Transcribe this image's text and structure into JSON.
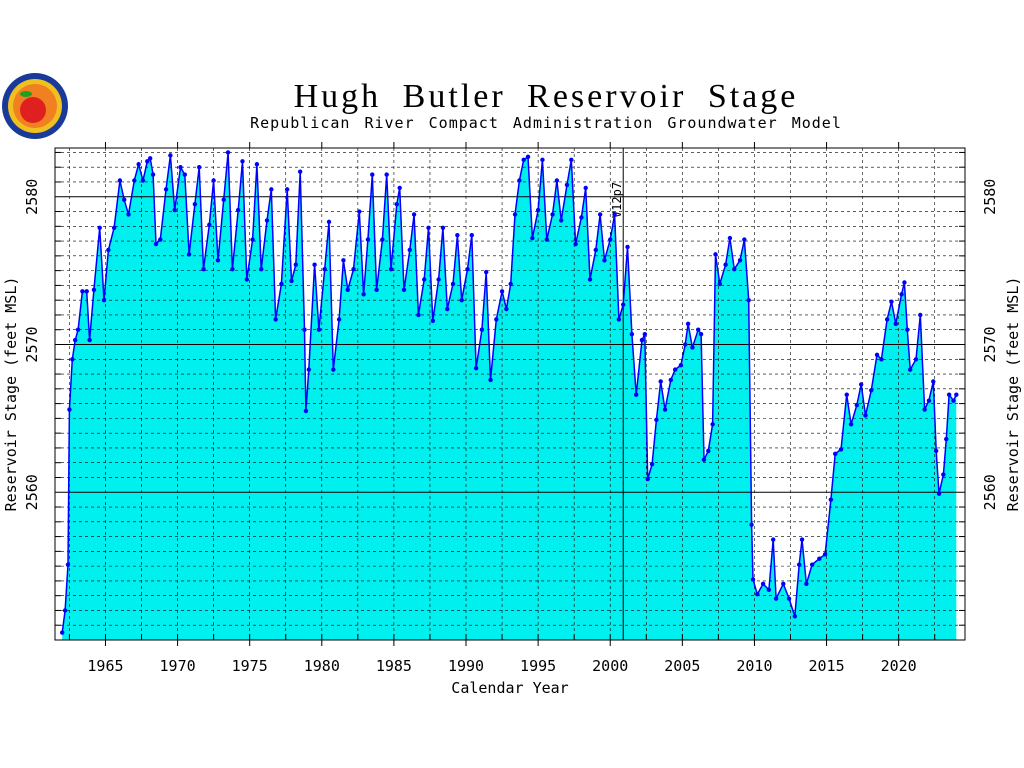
{
  "chart_data": {
    "type": "area",
    "title": "Hugh Butler Reservoir Stage",
    "subtitle": "Republican River Compact Administration Groundwater Model",
    "x_label": "Calendar Year",
    "y_label": "Reservoir Stage (feet MSL)",
    "xlim": [
      1961.5,
      2024.6
    ],
    "ylim": [
      2550,
      2583.3
    ],
    "xticks": [
      1965,
      1970,
      1975,
      1980,
      1985,
      1990,
      1995,
      2000,
      2005,
      2010,
      2015,
      2020
    ],
    "xgrid": [
      1962.5,
      1965,
      1967.5,
      1970,
      1972.5,
      1975,
      1977.5,
      1980,
      1982.5,
      1985,
      1987.5,
      1990,
      1992.5,
      1995,
      1997.5,
      2000,
      2002.5,
      2005,
      2007.5,
      2010,
      2012.5,
      2015,
      2017.5,
      2020,
      2022.5
    ],
    "yticks": [
      2560,
      2570,
      2580
    ],
    "yminor_ticks": [
      2551,
      2552,
      2553,
      2554,
      2555,
      2556,
      2557,
      2558,
      2559,
      2561,
      2562,
      2563,
      2564,
      2565,
      2566,
      2567,
      2568,
      2569,
      2571,
      2572,
      2573,
      2574,
      2575,
      2576,
      2577,
      2578,
      2579,
      2581,
      2582,
      2583
    ],
    "grid": true,
    "annotation": {
      "text": "V12p7",
      "x": 2000.9
    },
    "series": [
      {
        "name": "Reservoir Stage",
        "color": "#0000ff",
        "fill": "#00f0f0",
        "x": [
          1962.0,
          1962.2,
          1962.4,
          1962.5,
          1962.7,
          1962.9,
          1963.1,
          1963.4,
          1963.7,
          1963.9,
          1964.2,
          1964.6,
          1964.9,
          1965.2,
          1965.6,
          1966.0,
          1966.3,
          1966.6,
          1967.0,
          1967.3,
          1967.6,
          1967.9,
          1968.1,
          1968.3,
          1968.5,
          1968.8,
          1969.2,
          1969.5,
          1969.8,
          1970.2,
          1970.5,
          1970.8,
          1971.2,
          1971.5,
          1971.8,
          1972.2,
          1972.5,
          1972.8,
          1973.2,
          1973.5,
          1973.8,
          1974.2,
          1974.5,
          1974.8,
          1975.2,
          1975.5,
          1975.8,
          1976.2,
          1976.5,
          1976.8,
          1977.2,
          1977.6,
          1977.9,
          1978.2,
          1978.5,
          1978.8,
          1978.9,
          1979.1,
          1979.5,
          1979.8,
          1980.2,
          1980.5,
          1980.8,
          1981.2,
          1981.5,
          1981.8,
          1982.2,
          1982.6,
          1982.9,
          1983.2,
          1983.5,
          1983.8,
          1984.2,
          1984.5,
          1984.8,
          1985.2,
          1985.4,
          1985.7,
          1986.1,
          1986.4,
          1986.7,
          1987.1,
          1987.4,
          1987.7,
          1988.1,
          1988.4,
          1988.7,
          1989.1,
          1989.4,
          1989.7,
          1990.1,
          1990.4,
          1990.7,
          1991.1,
          1991.4,
          1991.7,
          1992.1,
          1992.5,
          1992.8,
          1993.1,
          1993.4,
          1993.7,
          1994.0,
          1994.3,
          1994.6,
          1995.0,
          1995.3,
          1995.6,
          1996.0,
          1996.3,
          1996.6,
          1997.0,
          1997.3,
          1997.6,
          1998.0,
          1998.3,
          1998.6,
          1999.0,
          1999.3,
          1999.6,
          2000.0,
          2000.3,
          2000.6,
          2000.9,
          2001.2,
          2001.5,
          2001.8,
          2002.2,
          2002.4,
          2002.6,
          2002.9,
          2003.2,
          2003.5,
          2003.8,
          2004.2,
          2004.5,
          2004.9,
          2005.2,
          2005.4,
          2005.7,
          2006.1,
          2006.3,
          2006.5,
          2006.8,
          2007.1,
          2007.3,
          2007.6,
          2008.0,
          2008.3,
          2008.6,
          2009.0,
          2009.3,
          2009.6,
          2009.8,
          2009.9,
          2010.2,
          2010.6,
          2011.0,
          2011.3,
          2011.5,
          2012.0,
          2012.4,
          2012.8,
          2013.1,
          2013.3,
          2013.6,
          2014.0,
          2014.5,
          2014.9,
          2015.3,
          2015.6,
          2016.0,
          2016.4,
          2016.7,
          2017.1,
          2017.4,
          2017.7,
          2018.1,
          2018.5,
          2018.8,
          2019.2,
          2019.5,
          2019.8,
          2020.2,
          2020.4,
          2020.6,
          2020.8,
          2021.2,
          2021.5,
          2021.8,
          2022.1,
          2022.4,
          2022.6,
          2022.8,
          2023.1,
          2023.3,
          2023.5,
          2023.8,
          2024.0
        ],
        "values": [
          2550.5,
          2552,
          2555.1,
          2565.6,
          2569,
          2570.3,
          2571,
          2573.6,
          2573.6,
          2570.3,
          2573.7,
          2577.9,
          2573,
          2576.4,
          2577.9,
          2581.1,
          2579.8,
          2578.8,
          2581.1,
          2582.2,
          2581.1,
          2582.4,
          2582.6,
          2581.5,
          2576.8,
          2577.1,
          2580.5,
          2582.8,
          2579.1,
          2582,
          2581.5,
          2576.1,
          2579.5,
          2582,
          2575.1,
          2578.1,
          2581.1,
          2575.7,
          2579.8,
          2583,
          2575.1,
          2579.1,
          2582.4,
          2574.4,
          2577.1,
          2582.2,
          2575.1,
          2578.4,
          2580.5,
          2571.7,
          2574.1,
          2580.5,
          2574.3,
          2575.4,
          2581.7,
          2571,
          2565.5,
          2568.3,
          2575.4,
          2571,
          2575.1,
          2578.3,
          2568.3,
          2571.7,
          2575.7,
          2573.7,
          2575.1,
          2579,
          2573.4,
          2577.1,
          2581.5,
          2573.7,
          2577.1,
          2581.5,
          2575.1,
          2579.5,
          2580.6,
          2573.7,
          2576.4,
          2578.8,
          2572,
          2574.4,
          2577.9,
          2571.6,
          2574.4,
          2577.9,
          2572.4,
          2574.1,
          2577.4,
          2573,
          2575.1,
          2577.4,
          2568.4,
          2571,
          2574.9,
          2567.6,
          2571.7,
          2573.6,
          2572.4,
          2574.1,
          2578.8,
          2581.1,
          2582.5,
          2582.7,
          2577.2,
          2579.1,
          2582.5,
          2577.1,
          2578.8,
          2581.1,
          2578.4,
          2580.8,
          2582.5,
          2576.8,
          2578.6,
          2580.6,
          2574.4,
          2576.4,
          2578.8,
          2575.7,
          2577.1,
          2578.8,
          2571.7,
          2572.7,
          2576.6,
          2570.7,
          2566.6,
          2570.3,
          2570.7,
          2560.9,
          2561.9,
          2564.9,
          2567.5,
          2565.6,
          2567.6,
          2568.3,
          2568.6,
          2570,
          2571.4,
          2569.8,
          2571,
          2570.7,
          2562.2,
          2562.8,
          2564.6,
          2576.1,
          2574.1,
          2575.4,
          2577.2,
          2575.1,
          2575.7,
          2577.1,
          2573,
          2557.8,
          2554.1,
          2553.1,
          2553.8,
          2553.4,
          2556.8,
          2552.8,
          2553.8,
          2552.8,
          2551.6,
          2555.1,
          2556.8,
          2553.8,
          2555.1,
          2555.5,
          2555.8,
          2559.5,
          2562.6,
          2562.9,
          2566.6,
          2564.6,
          2565.9,
          2567.3,
          2565.2,
          2566.9,
          2569.3,
          2569,
          2571.7,
          2572.9,
          2571.4,
          2573.4,
          2574.2,
          2571,
          2568.3,
          2569,
          2572,
          2565.6,
          2566.2,
          2567.5,
          2562.8,
          2559.9,
          2561.2,
          2563.6,
          2566.6,
          2566.2,
          2566.6
        ]
      }
    ]
  }
}
